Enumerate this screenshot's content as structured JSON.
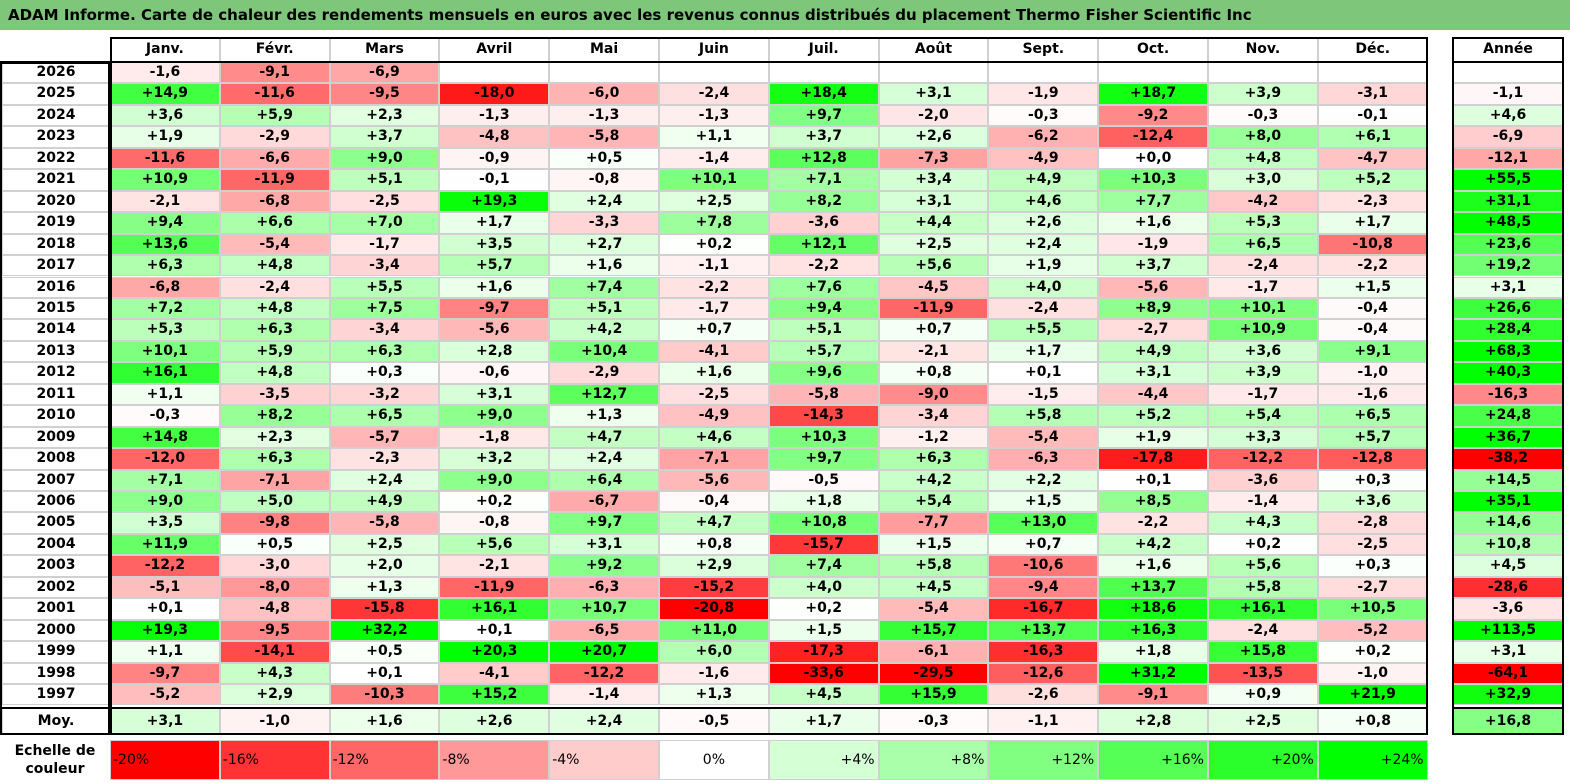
{
  "title": "ADAM Informe. Carte de chaleur des rendements mensuels en euros avec les revenus connus distribués du placement Thermo Fisher Scientific Inc",
  "colors": {
    "title_bg": "#7dc67a",
    "positive": "#00ff00",
    "negative": "#ff0000",
    "neutral": "#ffffff"
  },
  "chart_data": {
    "type": "heatmap",
    "title": "ADAM Informe. Carte de chaleur des rendements mensuels en euros avec les revenus connus distribués du placement Thermo Fisher Scientific Inc",
    "months": [
      "Janv.",
      "Févr.",
      "Mars",
      "Avril",
      "Mai",
      "Juin",
      "Juil.",
      "Août",
      "Sept.",
      "Oct.",
      "Nov.",
      "Déc."
    ],
    "year_header": "Année",
    "rows": [
      {
        "year": "2026",
        "months": [
          "-1,6",
          "-9,1",
          "-6,9",
          "",
          "",
          "",
          "",
          "",
          "",
          "",
          "",
          ""
        ],
        "annual": ""
      },
      {
        "year": "2025",
        "months": [
          "+14,9",
          "-11,6",
          "-9,5",
          "-18,0",
          "-6,0",
          "-2,4",
          "+18,4",
          "+3,1",
          "-1,9",
          "+18,7",
          "+3,9",
          "-3,1"
        ],
        "annual": "-1,1"
      },
      {
        "year": "2024",
        "months": [
          "+3,6",
          "+5,9",
          "+2,3",
          "-1,3",
          "-1,3",
          "-1,3",
          "+9,7",
          "-2,0",
          "-0,3",
          "-9,2",
          "-0,3",
          "-0,1"
        ],
        "annual": "+4,6"
      },
      {
        "year": "2023",
        "months": [
          "+1,9",
          "-2,9",
          "+3,7",
          "-4,8",
          "-5,8",
          "+1,1",
          "+3,7",
          "+2,6",
          "-6,2",
          "-12,4",
          "+8,0",
          "+6,1"
        ],
        "annual": "-6,9"
      },
      {
        "year": "2022",
        "months": [
          "-11,6",
          "-6,6",
          "+9,0",
          "-0,9",
          "+0,5",
          "-1,4",
          "+12,8",
          "-7,3",
          "-4,9",
          "+0,0",
          "+4,8",
          "-4,7"
        ],
        "annual": "-12,1"
      },
      {
        "year": "2021",
        "months": [
          "+10,9",
          "-11,9",
          "+5,1",
          "-0,1",
          "-0,8",
          "+10,1",
          "+7,1",
          "+3,4",
          "+4,9",
          "+10,3",
          "+3,0",
          "+5,2"
        ],
        "annual": "+55,5"
      },
      {
        "year": "2020",
        "months": [
          "-2,1",
          "-6,8",
          "-2,5",
          "+19,3",
          "+2,4",
          "+2,5",
          "+8,2",
          "+3,1",
          "+4,6",
          "+7,7",
          "-4,2",
          "-2,3"
        ],
        "annual": "+31,1"
      },
      {
        "year": "2019",
        "months": [
          "+9,4",
          "+6,6",
          "+7,0",
          "+1,7",
          "-3,3",
          "+7,8",
          "-3,6",
          "+4,4",
          "+2,6",
          "+1,6",
          "+5,3",
          "+1,7"
        ],
        "annual": "+48,5"
      },
      {
        "year": "2018",
        "months": [
          "+13,6",
          "-5,4",
          "-1,7",
          "+3,5",
          "+2,7",
          "+0,2",
          "+12,1",
          "+2,5",
          "+2,4",
          "-1,9",
          "+6,5",
          "-10,8"
        ],
        "annual": "+23,6"
      },
      {
        "year": "2017",
        "months": [
          "+6,3",
          "+4,8",
          "-3,4",
          "+5,7",
          "+1,6",
          "-1,1",
          "-2,2",
          "+5,6",
          "+1,9",
          "+3,7",
          "-2,4",
          "-2,2"
        ],
        "annual": "+19,2"
      },
      {
        "year": "2016",
        "months": [
          "-6,8",
          "-2,4",
          "+5,5",
          "+1,6",
          "+7,4",
          "-2,2",
          "+7,6",
          "-4,5",
          "+4,0",
          "-5,6",
          "-1,7",
          "+1,5"
        ],
        "annual": "+3,1"
      },
      {
        "year": "2015",
        "months": [
          "+7,2",
          "+4,8",
          "+7,5",
          "-9,7",
          "+5,1",
          "-1,7",
          "+9,4",
          "-11,9",
          "-2,4",
          "+8,9",
          "+10,1",
          "-0,4"
        ],
        "annual": "+26,6"
      },
      {
        "year": "2014",
        "months": [
          "+5,3",
          "+6,3",
          "-3,4",
          "-5,6",
          "+4,2",
          "+0,7",
          "+5,1",
          "+0,7",
          "+5,5",
          "-2,7",
          "+10,9",
          "-0,4"
        ],
        "annual": "+28,4"
      },
      {
        "year": "2013",
        "months": [
          "+10,1",
          "+5,9",
          "+6,3",
          "+2,8",
          "+10,4",
          "-4,1",
          "+5,7",
          "-2,1",
          "+1,7",
          "+4,9",
          "+3,6",
          "+9,1"
        ],
        "annual": "+68,3"
      },
      {
        "year": "2012",
        "months": [
          "+16,1",
          "+4,8",
          "+0,3",
          "-0,6",
          "-2,9",
          "+1,6",
          "+9,6",
          "+0,8",
          "+0,1",
          "+3,1",
          "+3,9",
          "-1,0"
        ],
        "annual": "+40,3"
      },
      {
        "year": "2011",
        "months": [
          "+1,1",
          "-3,5",
          "-3,2",
          "+3,1",
          "+12,7",
          "-2,5",
          "-5,8",
          "-9,0",
          "-1,5",
          "-4,4",
          "-1,7",
          "-1,6"
        ],
        "annual": "-16,3"
      },
      {
        "year": "2010",
        "months": [
          "-0,3",
          "+8,2",
          "+6,5",
          "+9,0",
          "+1,3",
          "-4,9",
          "-14,3",
          "-3,4",
          "+5,8",
          "+5,2",
          "+5,4",
          "+6,5"
        ],
        "annual": "+24,8"
      },
      {
        "year": "2009",
        "months": [
          "+14,8",
          "+2,3",
          "-5,7",
          "-1,8",
          "+4,7",
          "+4,6",
          "+10,3",
          "-1,2",
          "-5,4",
          "+1,9",
          "+3,3",
          "+5,7"
        ],
        "annual": "+36,7"
      },
      {
        "year": "2008",
        "months": [
          "-12,0",
          "+6,3",
          "-2,3",
          "+3,2",
          "+2,4",
          "-7,1",
          "+9,7",
          "+6,3",
          "-6,3",
          "-17,8",
          "-12,2",
          "-12,8"
        ],
        "annual": "-38,2"
      },
      {
        "year": "2007",
        "months": [
          "+7,1",
          "-7,1",
          "+2,4",
          "+9,0",
          "+6,4",
          "-5,6",
          "-0,5",
          "+4,2",
          "+2,2",
          "+0,1",
          "-3,6",
          "+0,3"
        ],
        "annual": "+14,5"
      },
      {
        "year": "2006",
        "months": [
          "+9,0",
          "+5,0",
          "+4,9",
          "+0,2",
          "-6,7",
          "-0,4",
          "+1,8",
          "+5,4",
          "+1,5",
          "+8,5",
          "-1,4",
          "+3,6"
        ],
        "annual": "+35,1"
      },
      {
        "year": "2005",
        "months": [
          "+3,5",
          "-9,8",
          "-5,8",
          "-0,8",
          "+9,7",
          "+4,7",
          "+10,8",
          "-7,7",
          "+13,0",
          "-2,2",
          "+4,3",
          "-2,8"
        ],
        "annual": "+14,6"
      },
      {
        "year": "2004",
        "months": [
          "+11,9",
          "+0,5",
          "+2,5",
          "+5,6",
          "+3,1",
          "+0,8",
          "-15,7",
          "+1,5",
          "+0,7",
          "+4,2",
          "+0,2",
          "-2,5"
        ],
        "annual": "+10,8"
      },
      {
        "year": "2003",
        "months": [
          "-12,2",
          "-3,0",
          "+2,0",
          "-2,1",
          "+9,2",
          "+2,9",
          "+7,4",
          "+5,8",
          "-10,6",
          "+1,6",
          "+5,6",
          "+0,3"
        ],
        "annual": "+4,5"
      },
      {
        "year": "2002",
        "months": [
          "-5,1",
          "-8,0",
          "+1,3",
          "-11,9",
          "-6,3",
          "-15,2",
          "+4,0",
          "+4,5",
          "-9,4",
          "+13,7",
          "+5,8",
          "-2,7"
        ],
        "annual": "-28,6"
      },
      {
        "year": "2001",
        "months": [
          "+0,1",
          "-4,8",
          "-15,8",
          "+16,1",
          "+10,7",
          "-20,8",
          "+0,2",
          "-5,4",
          "-16,7",
          "+18,6",
          "+16,1",
          "+10,5"
        ],
        "annual": "-3,6"
      },
      {
        "year": "2000",
        "months": [
          "+19,3",
          "-9,5",
          "+32,2",
          "+0,1",
          "-6,5",
          "+11,0",
          "+1,5",
          "+15,7",
          "+13,7",
          "+16,3",
          "-2,4",
          "-5,2"
        ],
        "annual": "+113,5"
      },
      {
        "year": "1999",
        "months": [
          "+1,1",
          "-14,1",
          "+0,5",
          "+20,3",
          "+20,7",
          "+6,0",
          "-17,3",
          "-6,1",
          "-16,3",
          "+1,8",
          "+15,8",
          "+0,2"
        ],
        "annual": "+3,1"
      },
      {
        "year": "1998",
        "months": [
          "-9,7",
          "+4,3",
          "+0,1",
          "-4,1",
          "-12,2",
          "-1,6",
          "-33,6",
          "-29,5",
          "-12,6",
          "+31,2",
          "-13,5",
          "-1,0"
        ],
        "annual": "-64,1"
      },
      {
        "year": "1997",
        "months": [
          "-5,2",
          "+2,9",
          "-10,3",
          "+15,2",
          "-1,4",
          "+1,3",
          "+4,5",
          "+15,9",
          "-2,6",
          "-9,1",
          "+0,9",
          "+21,9"
        ],
        "annual": "+32,9"
      }
    ],
    "average": {
      "label": "Moy.",
      "months": [
        "+3,1",
        "-1,0",
        "+1,6",
        "+2,6",
        "+2,4",
        "-0,5",
        "+1,7",
        "-0,3",
        "-1,1",
        "+2,8",
        "+2,5",
        "+0,8"
      ],
      "annual": "+16,8"
    },
    "scale": {
      "label": "Echelle de couleur",
      "stops": [
        "-20%",
        "-16%",
        "-12%",
        "-8%",
        "-4%",
        "0%",
        "+4%",
        "+8%",
        "+12%",
        "+16%",
        "+20%",
        "+24%"
      ],
      "values": [
        -20,
        -16,
        -12,
        -8,
        -4,
        0,
        4,
        8,
        12,
        16,
        20,
        24
      ]
    }
  }
}
